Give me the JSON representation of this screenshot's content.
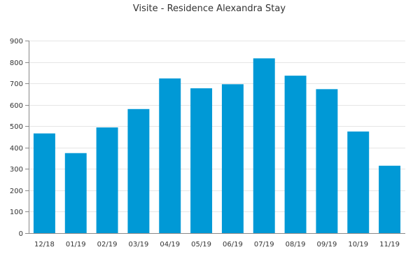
{
  "chart_data": {
    "type": "bar",
    "title": "Visite - Residence Alexandra Stay",
    "xlabel": "",
    "ylabel": "",
    "categories": [
      "12/18",
      "01/19",
      "02/19",
      "03/19",
      "04/19",
      "05/19",
      "06/19",
      "07/19",
      "08/19",
      "09/19",
      "10/19",
      "11/19"
    ],
    "values": [
      466,
      374,
      494,
      580,
      723,
      677,
      696,
      817,
      736,
      673,
      475,
      315
    ],
    "ylim": [
      0,
      900
    ],
    "yticks": [
      0,
      100,
      200,
      300,
      400,
      500,
      600,
      700,
      800,
      900
    ],
    "grid": true,
    "legend": "none",
    "bar_color": "#0099d6"
  }
}
